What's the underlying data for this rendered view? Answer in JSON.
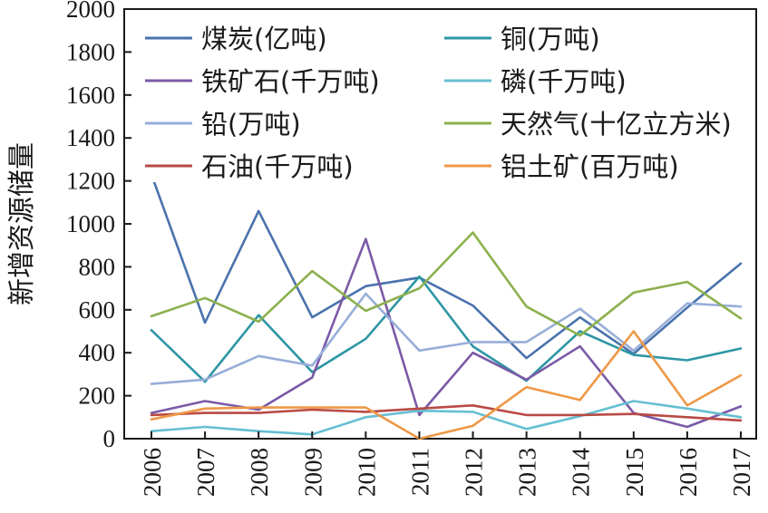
{
  "chart_data": {
    "type": "line",
    "title": "",
    "xlabel": "",
    "ylabel": "新增资源储量",
    "ylim": [
      0,
      2000
    ],
    "yticks": [
      0,
      200,
      400,
      600,
      800,
      1000,
      1200,
      1400,
      1600,
      1800,
      2000
    ],
    "x": [
      "2006",
      "2007",
      "2008",
      "2009",
      "2010",
      "2011",
      "2012",
      "2013",
      "2014",
      "2015",
      "2016",
      "2017"
    ],
    "grid": false,
    "legend_position": "top",
    "series": [
      {
        "name": "煤炭(亿吨)",
        "color": "#4a72ad",
        "values": [
          1230,
          540,
          1060,
          565,
          710,
          750,
          620,
          375,
          565,
          395,
          610,
          815
        ]
      },
      {
        "name": "铜(万吨)",
        "color": "#2e96a4",
        "values": [
          505,
          265,
          575,
          310,
          465,
          755,
          430,
          270,
          500,
          390,
          365,
          420
        ]
      },
      {
        "name": "铁矿石(千万吨)",
        "color": "#7b5aa6",
        "values": [
          120,
          175,
          135,
          285,
          930,
          110,
          400,
          275,
          430,
          120,
          55,
          150
        ]
      },
      {
        "name": "磷(千万吨)",
        "color": "#66bfd2",
        "values": [
          35,
          55,
          35,
          20,
          100,
          130,
          125,
          45,
          105,
          175,
          140,
          100
        ]
      },
      {
        "name": "铅(万吨)",
        "color": "#97aed8",
        "values": [
          255,
          275,
          385,
          340,
          675,
          410,
          450,
          450,
          605,
          410,
          630,
          615
        ]
      },
      {
        "name": "天然气(十亿立方米)",
        "color": "#8db04d",
        "values": [
          570,
          655,
          545,
          780,
          595,
          700,
          960,
          615,
          480,
          680,
          730,
          560
        ]
      },
      {
        "name": "石油(千万吨)",
        "color": "#b94a45",
        "values": [
          110,
          120,
          120,
          135,
          125,
          140,
          155,
          110,
          110,
          115,
          100,
          85
        ]
      },
      {
        "name": "铝土矿(百万吨)",
        "color": "#ee9847",
        "values": [
          90,
          140,
          145,
          145,
          145,
          0,
          60,
          240,
          180,
          500,
          155,
          295
        ]
      }
    ]
  }
}
